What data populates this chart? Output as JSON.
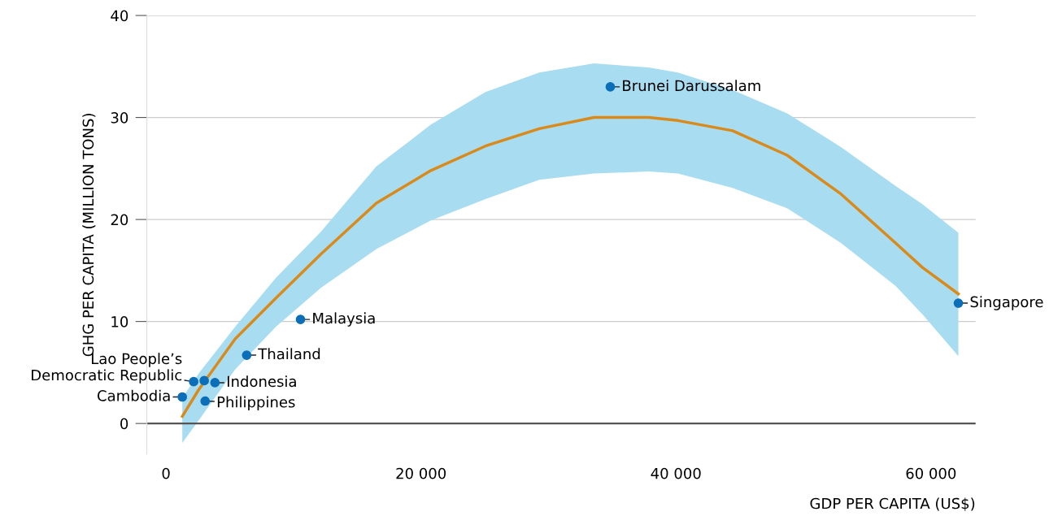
{
  "chart_data": {
    "type": "scatter",
    "xlabel": "GDP PER CAPITA (US$)",
    "ylabel": "GHG PER CAPITA (MILLION TONS)",
    "xlim": [
      -1500,
      63500
    ],
    "ylim": [
      -3,
      40
    ],
    "xticks": [
      0,
      {
        "value": 20000,
        "label": "20 000"
      },
      {
        "value": 40000,
        "label": "40 000"
      },
      {
        "value": 60000,
        "label": "60 000"
      }
    ],
    "yticks": [
      0,
      10,
      20,
      30,
      40
    ],
    "grid": "y",
    "legend": false,
    "ref_lines": [
      {
        "axis": "y",
        "value": 0,
        "color": "#555555"
      }
    ],
    "series": [
      {
        "type": "line",
        "color": "#d98a1a",
        "marker": "none",
        "x": [
          1280,
          2560,
          5430,
          8630,
          12150,
          16500,
          20780,
          25060,
          29280,
          33570,
          37850,
          40150,
          44440,
          48720,
          52940,
          57220,
          59330,
          62150
        ],
        "values": [
          0.7,
          3.3,
          8.3,
          12.3,
          16.6,
          21.6,
          24.8,
          27.2,
          28.9,
          30.0,
          30.0,
          29.7,
          28.7,
          26.3,
          22.5,
          17.7,
          15.3,
          12.7
        ],
        "lower": [
          -1.9,
          0.3,
          5.3,
          9.5,
          13.3,
          17.1,
          19.9,
          22.0,
          23.9,
          24.5,
          24.7,
          24.5,
          23.1,
          21.1,
          17.7,
          13.5,
          10.7,
          6.6
        ],
        "upper": [
          2.5,
          4.9,
          9.5,
          14.3,
          18.8,
          25.2,
          29.3,
          32.5,
          34.4,
          35.3,
          34.9,
          34.4,
          32.7,
          30.4,
          27.1,
          23.3,
          21.5,
          18.7
        ]
      },
      {
        "color": "#0b6eb8",
        "marker": "circle",
        "x": [
          1280,
          2170,
          3000,
          3840,
          3070,
          6330,
          10550,
          34850,
          62150
        ],
        "values": [
          2.6,
          4.1,
          4.2,
          4.0,
          2.2,
          6.7,
          10.2,
          33.0,
          11.8
        ]
      }
    ],
    "annotations": [
      {
        "text": "Cambodia",
        "x": 1280,
        "y": 2.6
      },
      {
        "text": "Lao People’s\nDemocratic Republic",
        "x": 2170,
        "y": 4.1
      },
      {
        "text": "Indonesia",
        "x": 3840,
        "y": 4.0
      },
      {
        "text": "Philippines",
        "x": 3070,
        "y": 2.2
      },
      {
        "text": "Thailand",
        "x": 6330,
        "y": 6.7
      },
      {
        "text": "Malaysia",
        "x": 10550,
        "y": 10.2
      },
      {
        "text": "Brunei Darussalam",
        "x": 34850,
        "y": 33.0
      },
      {
        "text": "Singapore",
        "x": 62150,
        "y": 11.8
      }
    ]
  }
}
